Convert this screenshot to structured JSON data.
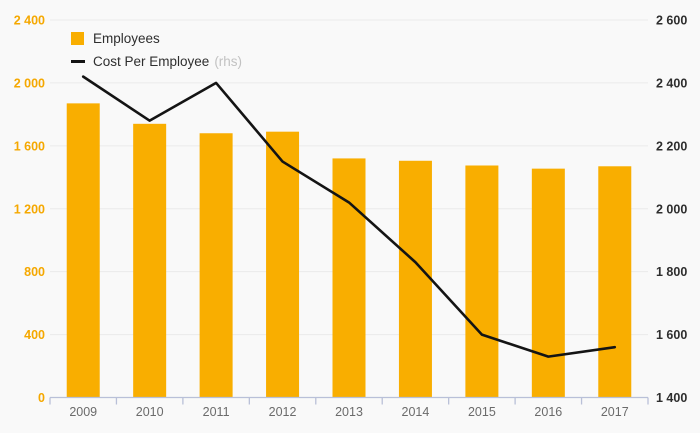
{
  "chart_data": {
    "type": "bar",
    "subtype": "bar-line-combo",
    "title": "",
    "categories": [
      "2009",
      "2010",
      "2011",
      "2012",
      "2013",
      "2014",
      "2015",
      "2016",
      "2017"
    ],
    "series": [
      {
        "name": "Employees",
        "type": "bar",
        "axis": "left",
        "color": "#F9AE00",
        "values": [
          1870,
          1740,
          1680,
          1690,
          1520,
          1505,
          1475,
          1455,
          1470
        ]
      },
      {
        "name": "Cost Per Employee",
        "axis_note": "(rhs)",
        "type": "line",
        "axis": "right",
        "color": "#141414",
        "values": [
          2420,
          2280,
          2400,
          2150,
          2020,
          1830,
          1600,
          1530,
          1560
        ]
      }
    ],
    "left_axis": {
      "min": 0,
      "max": 2400,
      "step": 400,
      "tick_labels": [
        "0",
        "400",
        "800",
        "1 200",
        "1 600",
        "2 000",
        "2 400"
      ],
      "color": "#F5A800"
    },
    "right_axis": {
      "min": 1400,
      "max": 2600,
      "step": 200,
      "tick_labels": [
        "1 400",
        "1 600",
        "1 800",
        "2 000",
        "2 200",
        "2 400",
        "2 600"
      ],
      "color": "#2E2E2E"
    },
    "x_axis": {
      "labels_color": "#6B6B6B",
      "line_color": "#B9C0D8"
    },
    "grid": true,
    "gridline_color": "#EAEAEA",
    "background": "#F9F9F9",
    "legend_position": "top-left",
    "ylim_left": [
      0,
      2400
    ],
    "ylim_right": [
      1400,
      2600
    ]
  }
}
